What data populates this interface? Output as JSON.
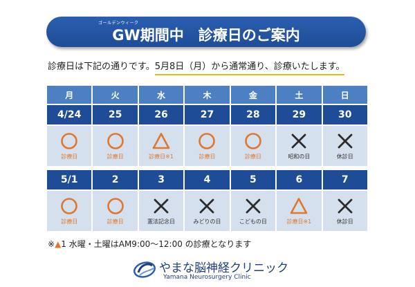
{
  "banner": {
    "ruby": "ゴールデンウィーク",
    "title": "GW期間中　診療日のご案内"
  },
  "intro": {
    "before": "診療日は下記の通りです。",
    "highlight": "5月8日（月）から通常通り、診療いたします。"
  },
  "weekdays": [
    "月",
    "火",
    "水",
    "木",
    "金",
    "土",
    "日"
  ],
  "week1": [
    {
      "date": "4/24",
      "symbol": "circle",
      "label": "診療日"
    },
    {
      "date": "25",
      "symbol": "circle",
      "label": "診療日"
    },
    {
      "date": "26",
      "symbol": "triangle",
      "label": "診療日※1"
    },
    {
      "date": "27",
      "symbol": "circle",
      "label": "診療日"
    },
    {
      "date": "28",
      "symbol": "circle",
      "label": "診療日"
    },
    {
      "date": "29",
      "symbol": "cross",
      "label": "昭和の日"
    },
    {
      "date": "30",
      "symbol": "cross",
      "label": "休診日"
    }
  ],
  "week2": [
    {
      "date": "5/1",
      "symbol": "circle",
      "label": "診療日"
    },
    {
      "date": "2",
      "symbol": "circle",
      "label": "診療日"
    },
    {
      "date": "3",
      "symbol": "cross",
      "label": "憲法記念日"
    },
    {
      "date": "4",
      "symbol": "cross",
      "label": "みどりの日"
    },
    {
      "date": "5",
      "symbol": "cross",
      "label": "こどもの日"
    },
    {
      "date": "6",
      "symbol": "triangle",
      "label": "診療日※1"
    },
    {
      "date": "7",
      "symbol": "cross",
      "label": "休診日"
    }
  ],
  "note": {
    "prefix": "※",
    "mark": "▲",
    "text": "1 水曜・土曜はAM9:00～12:00 の診療となります"
  },
  "clinic": {
    "name": "やまな脳神経クリニック",
    "english": "Yamana Neurosurgery Clinic"
  },
  "colors": {
    "banner": "#1f4c96",
    "weekday_header": "#4d80c3",
    "date_header": "#1f4c96",
    "cell": "#d4e0ee",
    "open_symbol": "#e2762a",
    "closed_symbol": "#2b2b2b",
    "underline": "#f3b415"
  }
}
